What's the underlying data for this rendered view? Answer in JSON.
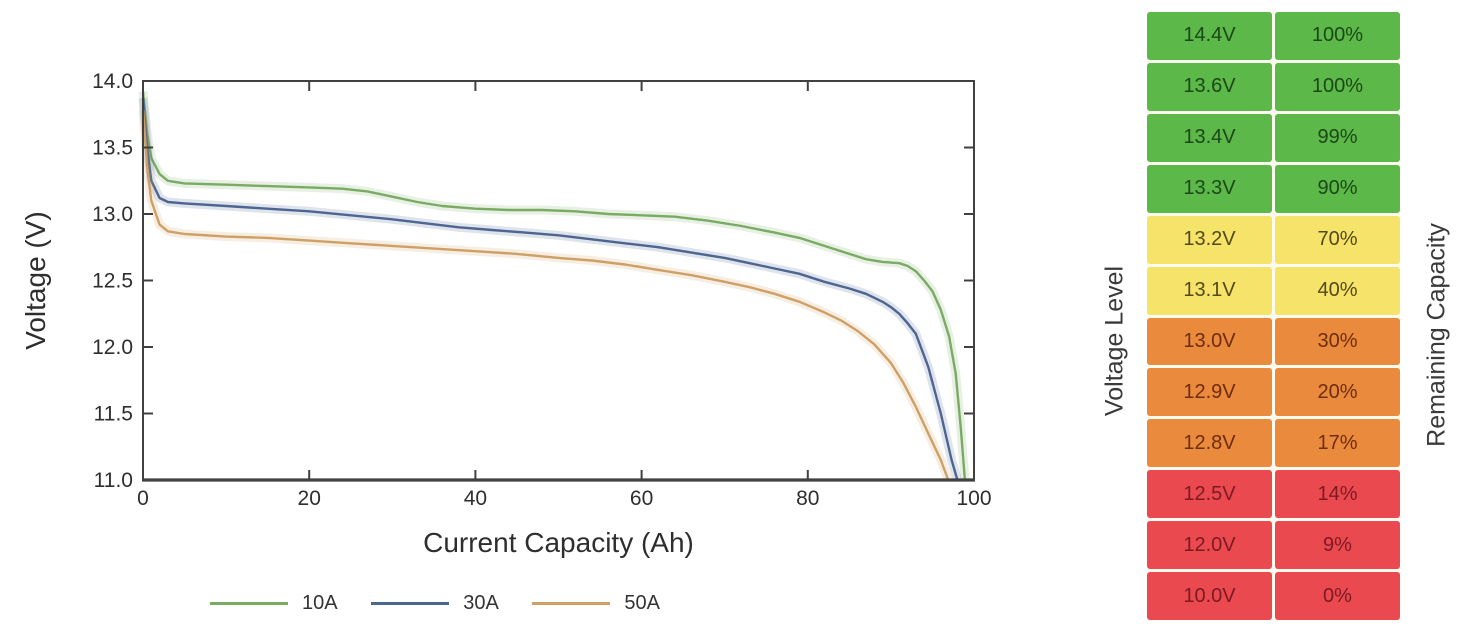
{
  "chart_data": {
    "type": "line",
    "title": "",
    "xlabel": "Current Capacity (Ah)",
    "ylabel": "Voltage (V)",
    "xlim": [
      0,
      100
    ],
    "ylim": [
      11.0,
      14.0
    ],
    "xticks": [
      0,
      20,
      40,
      60,
      80,
      100
    ],
    "xtick_labels": [
      "0",
      "20",
      "40",
      "60",
      "80",
      "100"
    ],
    "yticks": [
      11.0,
      11.5,
      12.0,
      12.5,
      13.0,
      13.5,
      14.0
    ],
    "ytick_labels": [
      "11.0",
      "11.5",
      "12.0",
      "12.5",
      "13.0",
      "13.5",
      "14.0"
    ],
    "grid": false,
    "legend_position": "bottom",
    "axis_color": "#404040",
    "text_color": "#2e2e2e",
    "series": [
      {
        "name": "10A",
        "color": "#79ab64",
        "points": [
          [
            0,
            13.92
          ],
          [
            0.5,
            13.6
          ],
          [
            1,
            13.42
          ],
          [
            2,
            13.3
          ],
          [
            3,
            13.25
          ],
          [
            5,
            13.23
          ],
          [
            10,
            13.22
          ],
          [
            15,
            13.21
          ],
          [
            20,
            13.2
          ],
          [
            24,
            13.19
          ],
          [
            27,
            13.17
          ],
          [
            30,
            13.13
          ],
          [
            33,
            13.09
          ],
          [
            36,
            13.06
          ],
          [
            40,
            13.04
          ],
          [
            44,
            13.03
          ],
          [
            48,
            13.03
          ],
          [
            52,
            13.02
          ],
          [
            56,
            13.0
          ],
          [
            60,
            12.99
          ],
          [
            64,
            12.98
          ],
          [
            68,
            12.95
          ],
          [
            72,
            12.91
          ],
          [
            76,
            12.86
          ],
          [
            79,
            12.82
          ],
          [
            82,
            12.76
          ],
          [
            85,
            12.7
          ],
          [
            87,
            12.66
          ],
          [
            89,
            12.64
          ],
          [
            91,
            12.63
          ],
          [
            92,
            12.61
          ],
          [
            93,
            12.57
          ],
          [
            94,
            12.5
          ],
          [
            95,
            12.42
          ],
          [
            96,
            12.28
          ],
          [
            97,
            12.08
          ],
          [
            97.8,
            11.8
          ],
          [
            98.4,
            11.4
          ],
          [
            98.9,
            11.0
          ]
        ]
      },
      {
        "name": "30A",
        "color": "#4d6591",
        "points": [
          [
            0,
            13.87
          ],
          [
            0.5,
            13.5
          ],
          [
            1,
            13.25
          ],
          [
            2,
            13.12
          ],
          [
            3,
            13.09
          ],
          [
            5,
            13.08
          ],
          [
            10,
            13.06
          ],
          [
            15,
            13.04
          ],
          [
            20,
            13.02
          ],
          [
            25,
            12.99
          ],
          [
            30,
            12.96
          ],
          [
            34,
            12.93
          ],
          [
            38,
            12.9
          ],
          [
            42,
            12.88
          ],
          [
            46,
            12.86
          ],
          [
            50,
            12.84
          ],
          [
            54,
            12.81
          ],
          [
            58,
            12.78
          ],
          [
            62,
            12.75
          ],
          [
            66,
            12.71
          ],
          [
            70,
            12.67
          ],
          [
            73,
            12.63
          ],
          [
            76,
            12.59
          ],
          [
            79,
            12.55
          ],
          [
            82,
            12.49
          ],
          [
            85,
            12.44
          ],
          [
            87,
            12.4
          ],
          [
            89,
            12.34
          ],
          [
            90,
            12.3
          ],
          [
            91,
            12.25
          ],
          [
            92,
            12.18
          ],
          [
            93,
            12.1
          ],
          [
            94.5,
            11.85
          ],
          [
            96,
            11.5
          ],
          [
            97.3,
            11.15
          ],
          [
            98,
            11.0
          ]
        ]
      },
      {
        "name": "50A",
        "color": "#cfa065",
        "points": [
          [
            0,
            13.78
          ],
          [
            0.5,
            13.35
          ],
          [
            1,
            13.1
          ],
          [
            2,
            12.92
          ],
          [
            3,
            12.87
          ],
          [
            5,
            12.85
          ],
          [
            10,
            12.83
          ],
          [
            15,
            12.82
          ],
          [
            20,
            12.8
          ],
          [
            25,
            12.78
          ],
          [
            30,
            12.76
          ],
          [
            35,
            12.74
          ],
          [
            40,
            12.72
          ],
          [
            45,
            12.7
          ],
          [
            50,
            12.67
          ],
          [
            54,
            12.65
          ],
          [
            58,
            12.62
          ],
          [
            62,
            12.58
          ],
          [
            66,
            12.54
          ],
          [
            70,
            12.49
          ],
          [
            73,
            12.45
          ],
          [
            76,
            12.4
          ],
          [
            79,
            12.34
          ],
          [
            82,
            12.26
          ],
          [
            84,
            12.2
          ],
          [
            86,
            12.12
          ],
          [
            88,
            12.02
          ],
          [
            90,
            11.88
          ],
          [
            91.5,
            11.73
          ],
          [
            93,
            11.55
          ],
          [
            94.5,
            11.35
          ],
          [
            96,
            11.15
          ],
          [
            96.9,
            11.0
          ]
        ]
      }
    ]
  },
  "capacity_table": {
    "left_label": "Voltage Level",
    "right_label": "Remaining Capacity",
    "status_colors": {
      "green": "#5cb848",
      "yellow": "#f5e36a",
      "orange": "#ea8a3c",
      "red": "#e9494f"
    },
    "rows": [
      {
        "voltage": "14.4V",
        "capacity": "100%",
        "status": "green"
      },
      {
        "voltage": "13.6V",
        "capacity": "100%",
        "status": "green"
      },
      {
        "voltage": "13.4V",
        "capacity": "99%",
        "status": "green"
      },
      {
        "voltage": "13.3V",
        "capacity": "90%",
        "status": "green"
      },
      {
        "voltage": "13.2V",
        "capacity": "70%",
        "status": "yellow"
      },
      {
        "voltage": "13.1V",
        "capacity": "40%",
        "status": "yellow"
      },
      {
        "voltage": "13.0V",
        "capacity": "30%",
        "status": "orange"
      },
      {
        "voltage": "12.9V",
        "capacity": "20%",
        "status": "orange"
      },
      {
        "voltage": "12.8V",
        "capacity": "17%",
        "status": "orange"
      },
      {
        "voltage": "12.5V",
        "capacity": "14%",
        "status": "red"
      },
      {
        "voltage": "12.0V",
        "capacity": "9%",
        "status": "red"
      },
      {
        "voltage": "10.0V",
        "capacity": "0%",
        "status": "red"
      }
    ]
  }
}
